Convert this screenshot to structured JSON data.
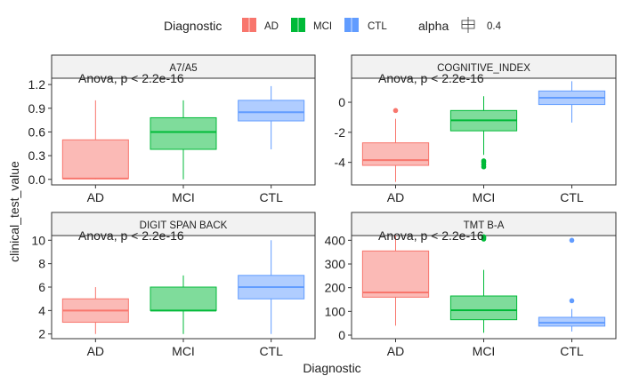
{
  "legend": {
    "title": "Diagnostic",
    "items": [
      {
        "label": "AD",
        "color": "#F8766D"
      },
      {
        "label": "MCI",
        "color": "#00BA38"
      },
      {
        "label": "CTL",
        "color": "#619CFF"
      }
    ],
    "alpha_title": "alpha",
    "alpha_value": "0.4"
  },
  "xlabel": "Diagnostic",
  "ylabel": "clinical_test_value",
  "chart_data": [
    {
      "type": "box",
      "title": "A7/A5",
      "annotation": "Anova, p < 2.2e-16",
      "categories": [
        "AD",
        "MCI",
        "CTL"
      ],
      "ylim": [
        -0.07,
        1.28
      ],
      "yticks": [
        0.0,
        0.3,
        0.6,
        0.9,
        1.2
      ],
      "ytick_labels": [
        "0.0",
        "0.3",
        "0.6",
        "0.9",
        "1.2"
      ],
      "boxes": [
        {
          "category": "AD",
          "min": 0.0,
          "q1": 0.01,
          "median": 0.01,
          "q3": 0.5,
          "max": 1.0,
          "outliers": []
        },
        {
          "category": "MCI",
          "min": 0.0,
          "q1": 0.38,
          "median": 0.6,
          "q3": 0.78,
          "max": 1.0,
          "outliers": []
        },
        {
          "category": "CTL",
          "min": 0.38,
          "q1": 0.74,
          "median": 0.85,
          "q3": 1.0,
          "max": 1.18,
          "outliers": []
        }
      ]
    },
    {
      "type": "box",
      "title": "COGNITIVE_INDEX",
      "annotation": "Anova, p < 2.2e-16",
      "categories": [
        "AD",
        "MCI",
        "CTL"
      ],
      "ylim": [
        -5.5,
        1.6
      ],
      "yticks": [
        -4,
        -2,
        0
      ],
      "ytick_labels": [
        "-4",
        "-2",
        "0"
      ],
      "boxes": [
        {
          "category": "AD",
          "min": -5.3,
          "q1": -4.2,
          "median": -3.85,
          "q3": -2.7,
          "max": -1.1,
          "outliers": [
            -0.55
          ]
        },
        {
          "category": "MCI",
          "min": -3.5,
          "q1": -1.9,
          "median": -1.2,
          "q3": -0.55,
          "max": 0.4,
          "outliers": [
            -3.9,
            -4.0,
            -4.15,
            -4.3
          ]
        },
        {
          "category": "CTL",
          "min": -1.35,
          "q1": -0.15,
          "median": 0.3,
          "q3": 0.75,
          "max": 1.4,
          "outliers": []
        }
      ]
    },
    {
      "type": "box",
      "title": "DIGIT SPAN BACK",
      "annotation": "Anova, p < 2.2e-16",
      "categories": [
        "AD",
        "MCI",
        "CTL"
      ],
      "ylim": [
        1.6,
        10.4
      ],
      "yticks": [
        2,
        4,
        6,
        8,
        10
      ],
      "ytick_labels": [
        "2",
        "4",
        "6",
        "8",
        "10"
      ],
      "boxes": [
        {
          "category": "AD",
          "min": 2,
          "q1": 3,
          "median": 4,
          "q3": 5,
          "max": 6,
          "outliers": []
        },
        {
          "category": "MCI",
          "min": 2,
          "q1": 4,
          "median": 4,
          "q3": 6,
          "max": 7,
          "outliers": []
        },
        {
          "category": "CTL",
          "min": 2,
          "q1": 5,
          "median": 6,
          "q3": 7,
          "max": 10,
          "outliers": []
        }
      ]
    },
    {
      "type": "box",
      "title": "TMT B-A",
      "annotation": "Anova, p < 2.2e-16",
      "categories": [
        "AD",
        "MCI",
        "CTL"
      ],
      "ylim": [
        -15,
        420
      ],
      "yticks": [
        0,
        100,
        200,
        300,
        400
      ],
      "ytick_labels": [
        "0",
        "100",
        "200",
        "300",
        "400"
      ],
      "boxes": [
        {
          "category": "AD",
          "min": 40,
          "q1": 160,
          "median": 180,
          "q3": 355,
          "max": 420,
          "outliers": []
        },
        {
          "category": "MCI",
          "min": 10,
          "q1": 65,
          "median": 105,
          "q3": 165,
          "max": 275,
          "outliers": [
            405,
            410,
            415
          ]
        },
        {
          "category": "CTL",
          "min": 15,
          "q1": 38,
          "median": 52,
          "q3": 75,
          "max": 110,
          "outliers": [
            145,
            400
          ]
        }
      ]
    }
  ]
}
